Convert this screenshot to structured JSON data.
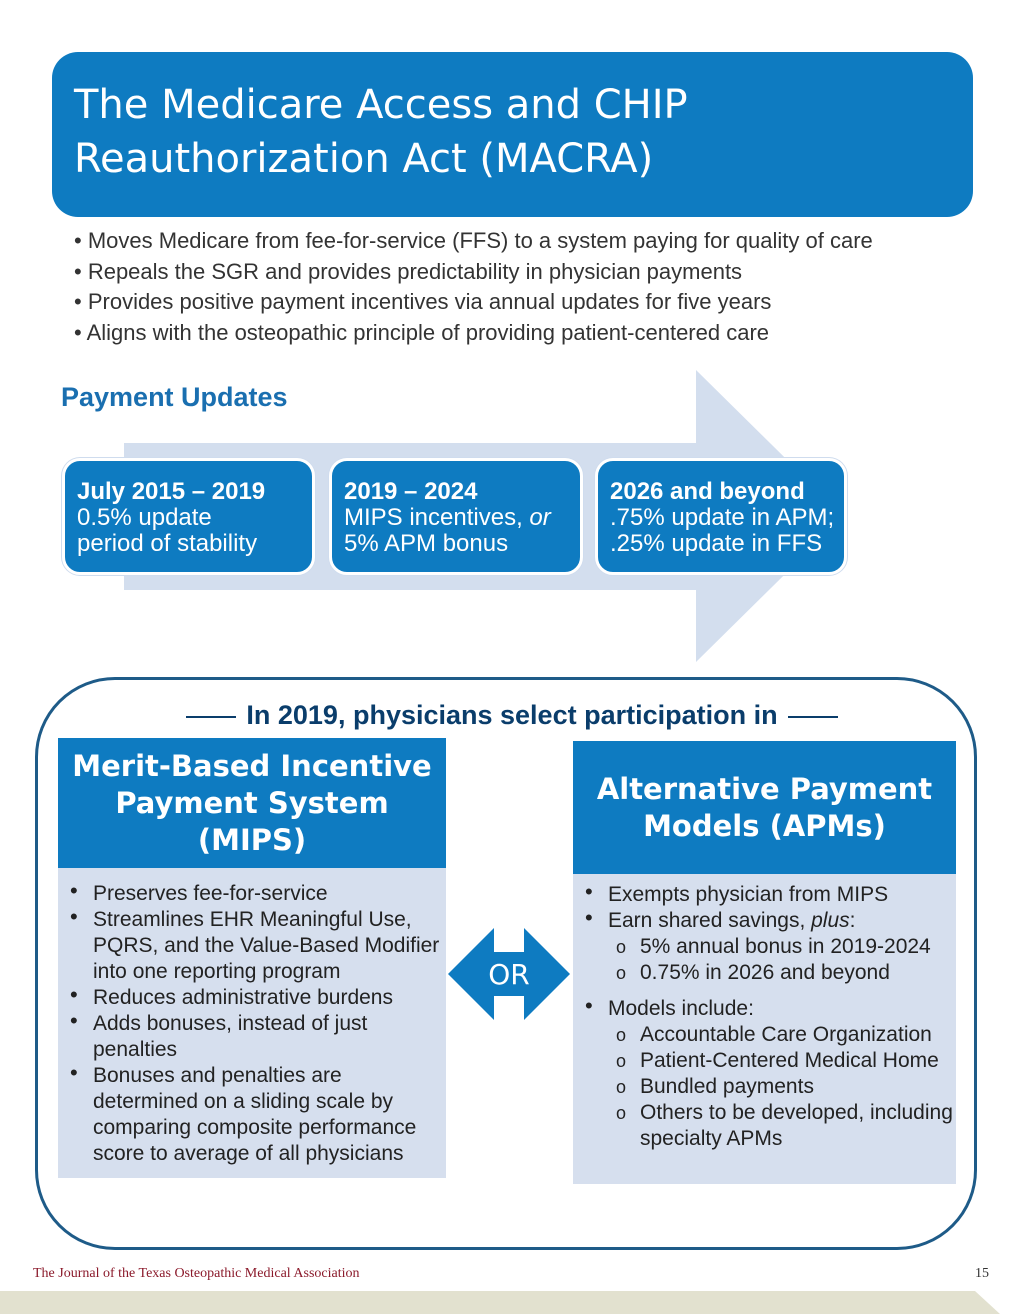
{
  "header": {
    "title_line1": "The Medicare Access and CHIP",
    "title_line2": "Reauthorization Act (MACRA)"
  },
  "bullets": [
    "Moves Medicare from fee-for-service (FFS) to a system paying for quality of care",
    "Repeals the SGR and provides predictability in physician payments",
    "Provides positive payment incentives via annual updates for five years",
    "Aligns with the osteopathic principle of providing patient-centered care"
  ],
  "payment_updates": {
    "title": "Payment Updates",
    "boxes": [
      {
        "heading": "July 2015 – 2019",
        "line1": "0.5% update",
        "line2": "period of stability"
      },
      {
        "heading": "2019 – 2024",
        "line1a": "MIPS incentives, ",
        "line1b": "or",
        "line2": "5% APM bonus"
      },
      {
        "heading": "2026 and beyond",
        "line1": ".75% update in APM;",
        "line2": ".25% update in FFS"
      }
    ]
  },
  "selection": {
    "heading": "In 2019, physicians select participation in",
    "or_label": "OR"
  },
  "mips": {
    "title_line1": "Merit-Based Incentive",
    "title_line2": "Payment System (MIPS)",
    "items": [
      "Preserves fee-for-service",
      "Streamlines EHR Meaningful Use, PQRS, and the Value-Based Modifier into one reporting program",
      "Reduces administrative burdens",
      "Adds bonuses, instead of just penalties",
      "Bonuses and penalties are determined on a sliding scale by comparing composite performance score to average of all physicians"
    ]
  },
  "apm": {
    "title_line1": "Alternative Payment",
    "title_line2": "Models (APMs)",
    "item1": "Exempts physician from MIPS",
    "item2a": "Earn shared savings, ",
    "item2b": "plus",
    "item2c": ":",
    "sub1": [
      "5% annual bonus in 2019-2024",
      "0.75% in 2026 and beyond"
    ],
    "item3": "Models include:",
    "sub2": [
      "Accountable Care Organization",
      "Patient-Centered Medical Home",
      "Bundled payments",
      "Others to be developed, including specialty APMs"
    ]
  },
  "footer": {
    "journal": "The Journal of the Texas Osteopathic Medical Association",
    "page": "15"
  },
  "colors": {
    "primary_blue": "#0e7bc1",
    "panel": "#d6dfee",
    "navy": "#0a3d6b",
    "footer_red": "#8b1a2b"
  }
}
